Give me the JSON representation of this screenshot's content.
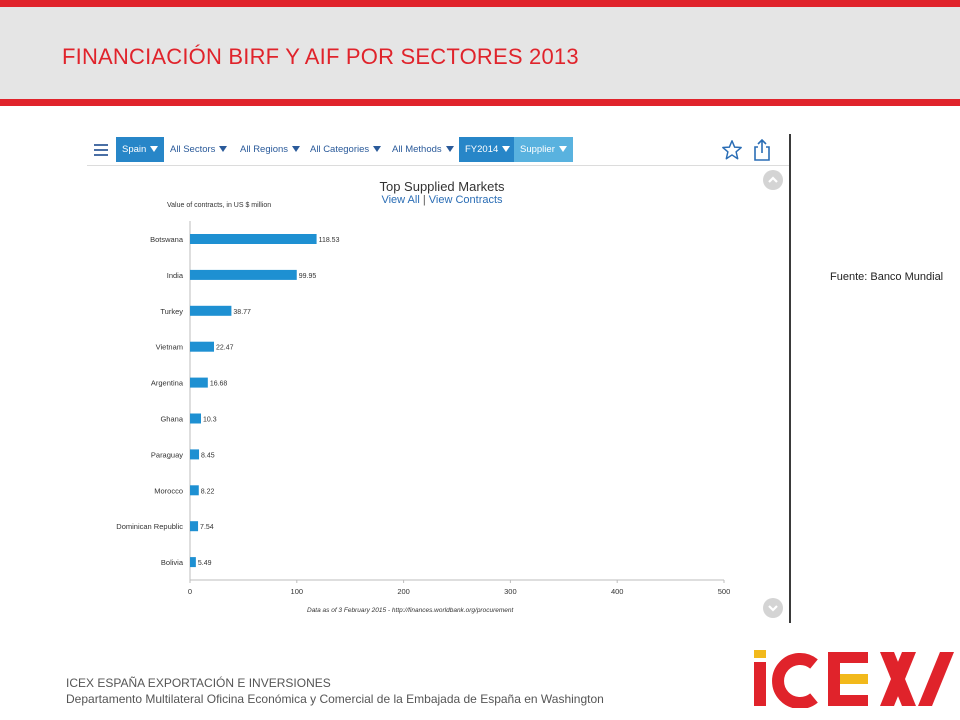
{
  "slide": {
    "title": "FINANCIACIÓN BIRF Y AIF POR SECTORES 2013",
    "source_note": "Fuente: Banco Mundial",
    "footer_org": "ICEX ESPAÑA EXPORTACIÓN  E INVERSIONES",
    "footer_dept": "Departamento Multilateral Oficina Económica y Comercial de la Embajada de España en Washington",
    "logo_text": "ICEX",
    "colors": {
      "accent_red": "#e0232b",
      "header_gray": "#e5e5e5",
      "bar_blue": "#1e90d2",
      "logo_yellow": "#f2b91b"
    }
  },
  "toolbar": {
    "menu_icon": "hamburger-icon",
    "filters": [
      {
        "label": "Spain",
        "selected": true
      },
      {
        "label": "All Sectors",
        "selected": false
      },
      {
        "label": "All Regions",
        "selected": false
      },
      {
        "label": "All Categories",
        "selected": false
      },
      {
        "label": "All Methods",
        "selected": false
      },
      {
        "label": "FY2014",
        "selected": true
      },
      {
        "label": "Supplier",
        "selected": true
      }
    ],
    "icons": [
      "star-icon",
      "share-icon"
    ]
  },
  "chart_panel": {
    "title": "Top Supplied Markets",
    "link_view_all": "View All",
    "link_separator": "|",
    "link_view_contracts": "View Contracts",
    "units_label": "Value of contracts, in US $ million",
    "footnote": "Data as of 3 February 2015 - http://finances.worldbank.org/procurement"
  },
  "chart_data": {
    "type": "bar",
    "orientation": "horizontal",
    "title": "Top Supplied Markets",
    "xlabel": "Value of contracts, in US $ million",
    "categories": [
      "Botswana",
      "India",
      "Turkey",
      "Vietnam",
      "Argentina",
      "Ghana",
      "Paraguay",
      "Morocco",
      "Dominican Republic",
      "Bolivia"
    ],
    "values": [
      118.53,
      99.95,
      38.77,
      22.47,
      16.68,
      10.3,
      8.45,
      8.22,
      7.54,
      5.49
    ],
    "value_labels": [
      "118.53",
      "99.95",
      "38.77",
      "22.47",
      "16.68",
      "10.3",
      "8.45",
      "8.22",
      "7.54",
      "5.49"
    ],
    "xlim": [
      0,
      500
    ],
    "xticks": [
      0,
      100,
      200,
      300,
      400,
      500
    ],
    "grid": false,
    "legend": "none"
  }
}
